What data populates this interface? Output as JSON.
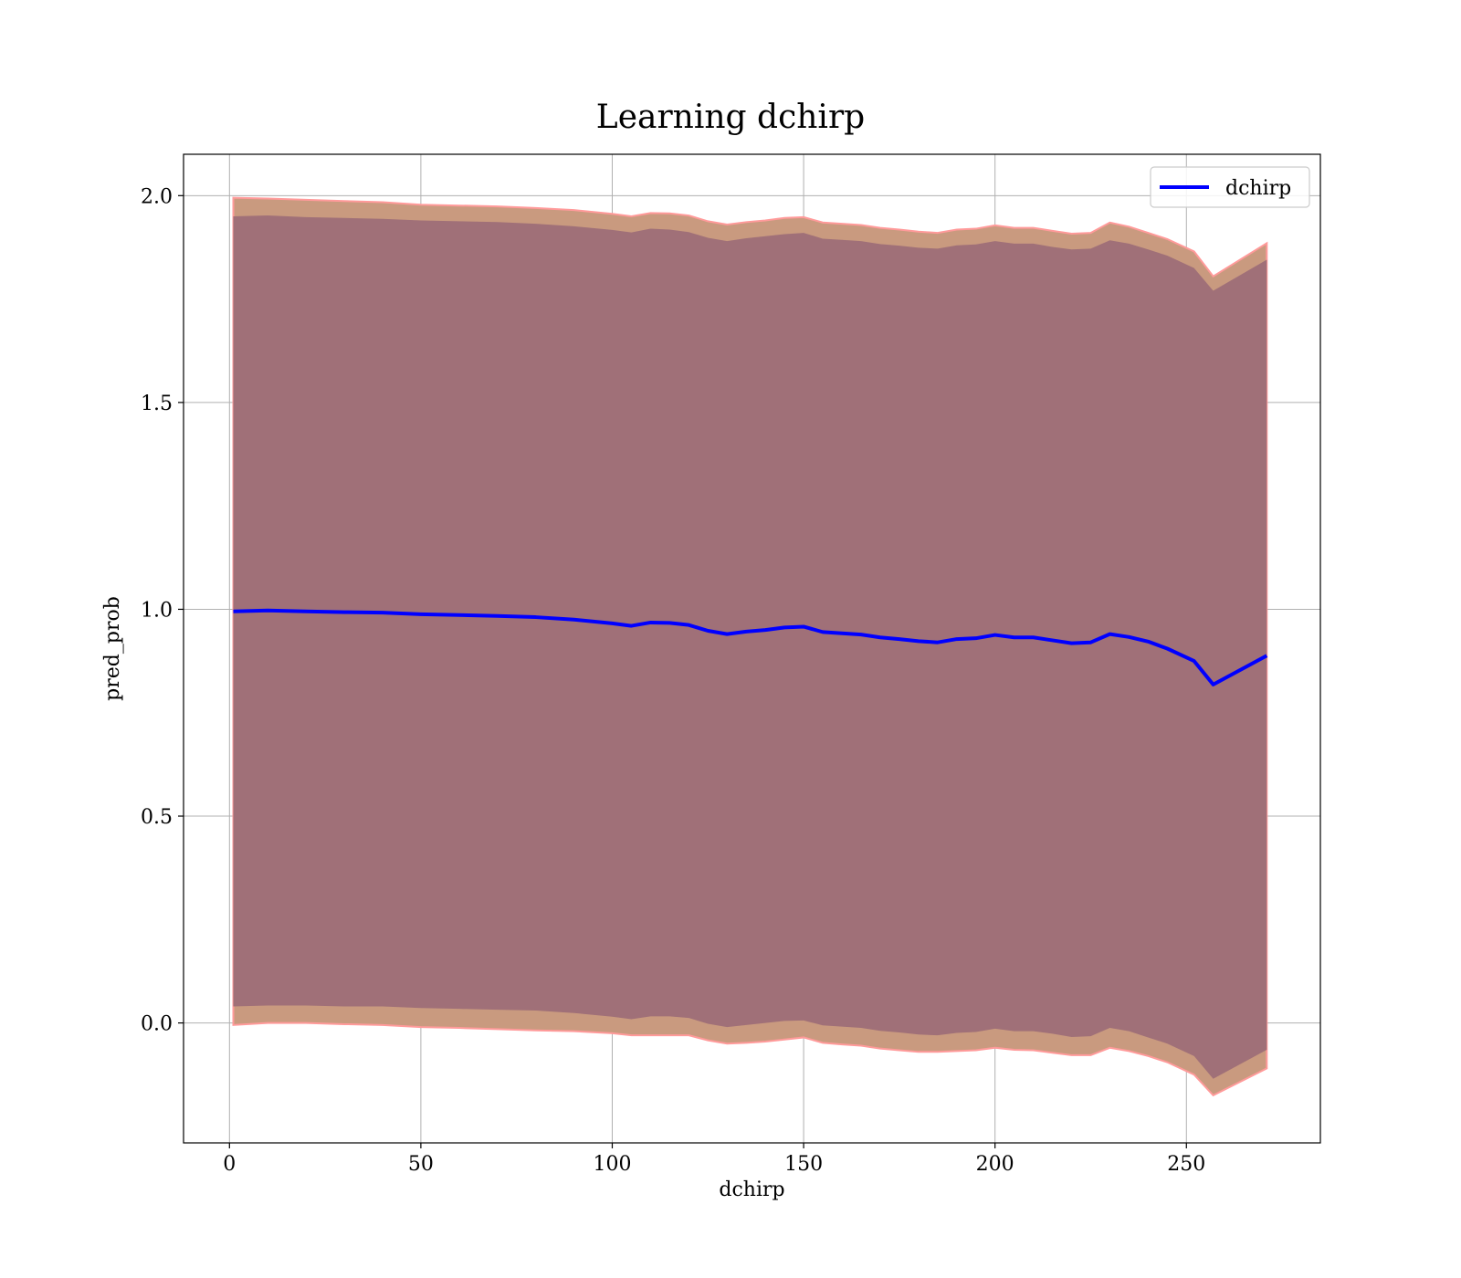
{
  "chart_data": {
    "type": "line",
    "title": "Learning dchirp",
    "xlabel": "dchirp",
    "ylabel": "pred_prob",
    "xlim": [
      -12,
      285
    ],
    "ylim": [
      -0.29,
      2.1
    ],
    "xticks": [
      0,
      50,
      100,
      150,
      200,
      250
    ],
    "yticks": [
      0.0,
      0.5,
      1.0,
      1.5,
      2.0
    ],
    "xtick_labels": [
      "0",
      "50",
      "100",
      "150",
      "200",
      "250"
    ],
    "ytick_labels": [
      "0.0",
      "0.5",
      "1.0",
      "1.5",
      "2.0"
    ],
    "grid": true,
    "legend_position": "top-right",
    "colors": {
      "line": "#0000ff",
      "band_outer": "#c99a7f",
      "band_outer_edge": "#ff9a9a",
      "band_inner": "#a07078",
      "grid": "#b0b0b0"
    },
    "series": [
      {
        "name": "dchirp",
        "x": [
          1,
          10,
          20,
          30,
          40,
          50,
          60,
          70,
          80,
          90,
          100,
          105,
          110,
          115,
          120,
          125,
          130,
          135,
          140,
          145,
          150,
          155,
          160,
          165,
          170,
          175,
          180,
          185,
          190,
          195,
          200,
          205,
          210,
          215,
          220,
          225,
          230,
          235,
          240,
          245,
          252,
          257,
          271
        ],
        "values": [
          0.995,
          0.997,
          0.995,
          0.993,
          0.992,
          0.988,
          0.986,
          0.984,
          0.981,
          0.975,
          0.966,
          0.96,
          0.968,
          0.967,
          0.962,
          0.948,
          0.94,
          0.946,
          0.95,
          0.956,
          0.958,
          0.945,
          0.942,
          0.939,
          0.932,
          0.928,
          0.923,
          0.92,
          0.928,
          0.93,
          0.938,
          0.932,
          0.932,
          0.925,
          0.918,
          0.92,
          0.94,
          0.933,
          0.922,
          0.905,
          0.875,
          0.818,
          0.888
        ]
      }
    ],
    "band_outer_upper": [
      1.995,
      1.993,
      1.99,
      1.987,
      1.984,
      1.978,
      1.976,
      1.974,
      1.97,
      1.965,
      1.956,
      1.95,
      1.958,
      1.957,
      1.952,
      1.938,
      1.93,
      1.936,
      1.94,
      1.946,
      1.948,
      1.935,
      1.932,
      1.929,
      1.922,
      1.918,
      1.913,
      1.91,
      1.918,
      1.92,
      1.928,
      1.922,
      1.922,
      1.915,
      1.908,
      1.91,
      1.935,
      1.925,
      1.91,
      1.895,
      1.865,
      1.805,
      1.885
    ],
    "band_outer_lower": [
      -0.005,
      0.0,
      0.0,
      -0.003,
      -0.005,
      -0.01,
      -0.012,
      -0.015,
      -0.018,
      -0.02,
      -0.025,
      -0.03,
      -0.03,
      -0.03,
      -0.03,
      -0.042,
      -0.05,
      -0.048,
      -0.045,
      -0.04,
      -0.035,
      -0.048,
      -0.052,
      -0.055,
      -0.062,
      -0.066,
      -0.07,
      -0.07,
      -0.068,
      -0.066,
      -0.06,
      -0.065,
      -0.066,
      -0.072,
      -0.078,
      -0.078,
      -0.06,
      -0.068,
      -0.08,
      -0.095,
      -0.125,
      -0.175,
      -0.11
    ],
    "band_inner_upper": [
      1.95,
      1.952,
      1.948,
      1.946,
      1.944,
      1.94,
      1.938,
      1.936,
      1.932,
      1.926,
      1.917,
      1.911,
      1.92,
      1.918,
      1.912,
      1.898,
      1.89,
      1.897,
      1.902,
      1.907,
      1.91,
      1.896,
      1.893,
      1.89,
      1.883,
      1.879,
      1.874,
      1.872,
      1.88,
      1.882,
      1.89,
      1.884,
      1.884,
      1.876,
      1.87,
      1.872,
      1.892,
      1.884,
      1.87,
      1.855,
      1.825,
      1.77,
      1.845
    ],
    "band_inner_lower": [
      0.04,
      0.042,
      0.042,
      0.04,
      0.04,
      0.036,
      0.034,
      0.032,
      0.03,
      0.024,
      0.015,
      0.009,
      0.016,
      0.016,
      0.012,
      -0.002,
      -0.01,
      -0.005,
      0.0,
      0.005,
      0.006,
      -0.006,
      -0.009,
      -0.012,
      -0.019,
      -0.023,
      -0.028,
      -0.03,
      -0.024,
      -0.022,
      -0.014,
      -0.02,
      -0.02,
      -0.026,
      -0.034,
      -0.032,
      -0.012,
      -0.02,
      -0.035,
      -0.05,
      -0.08,
      -0.135,
      -0.065
    ]
  }
}
